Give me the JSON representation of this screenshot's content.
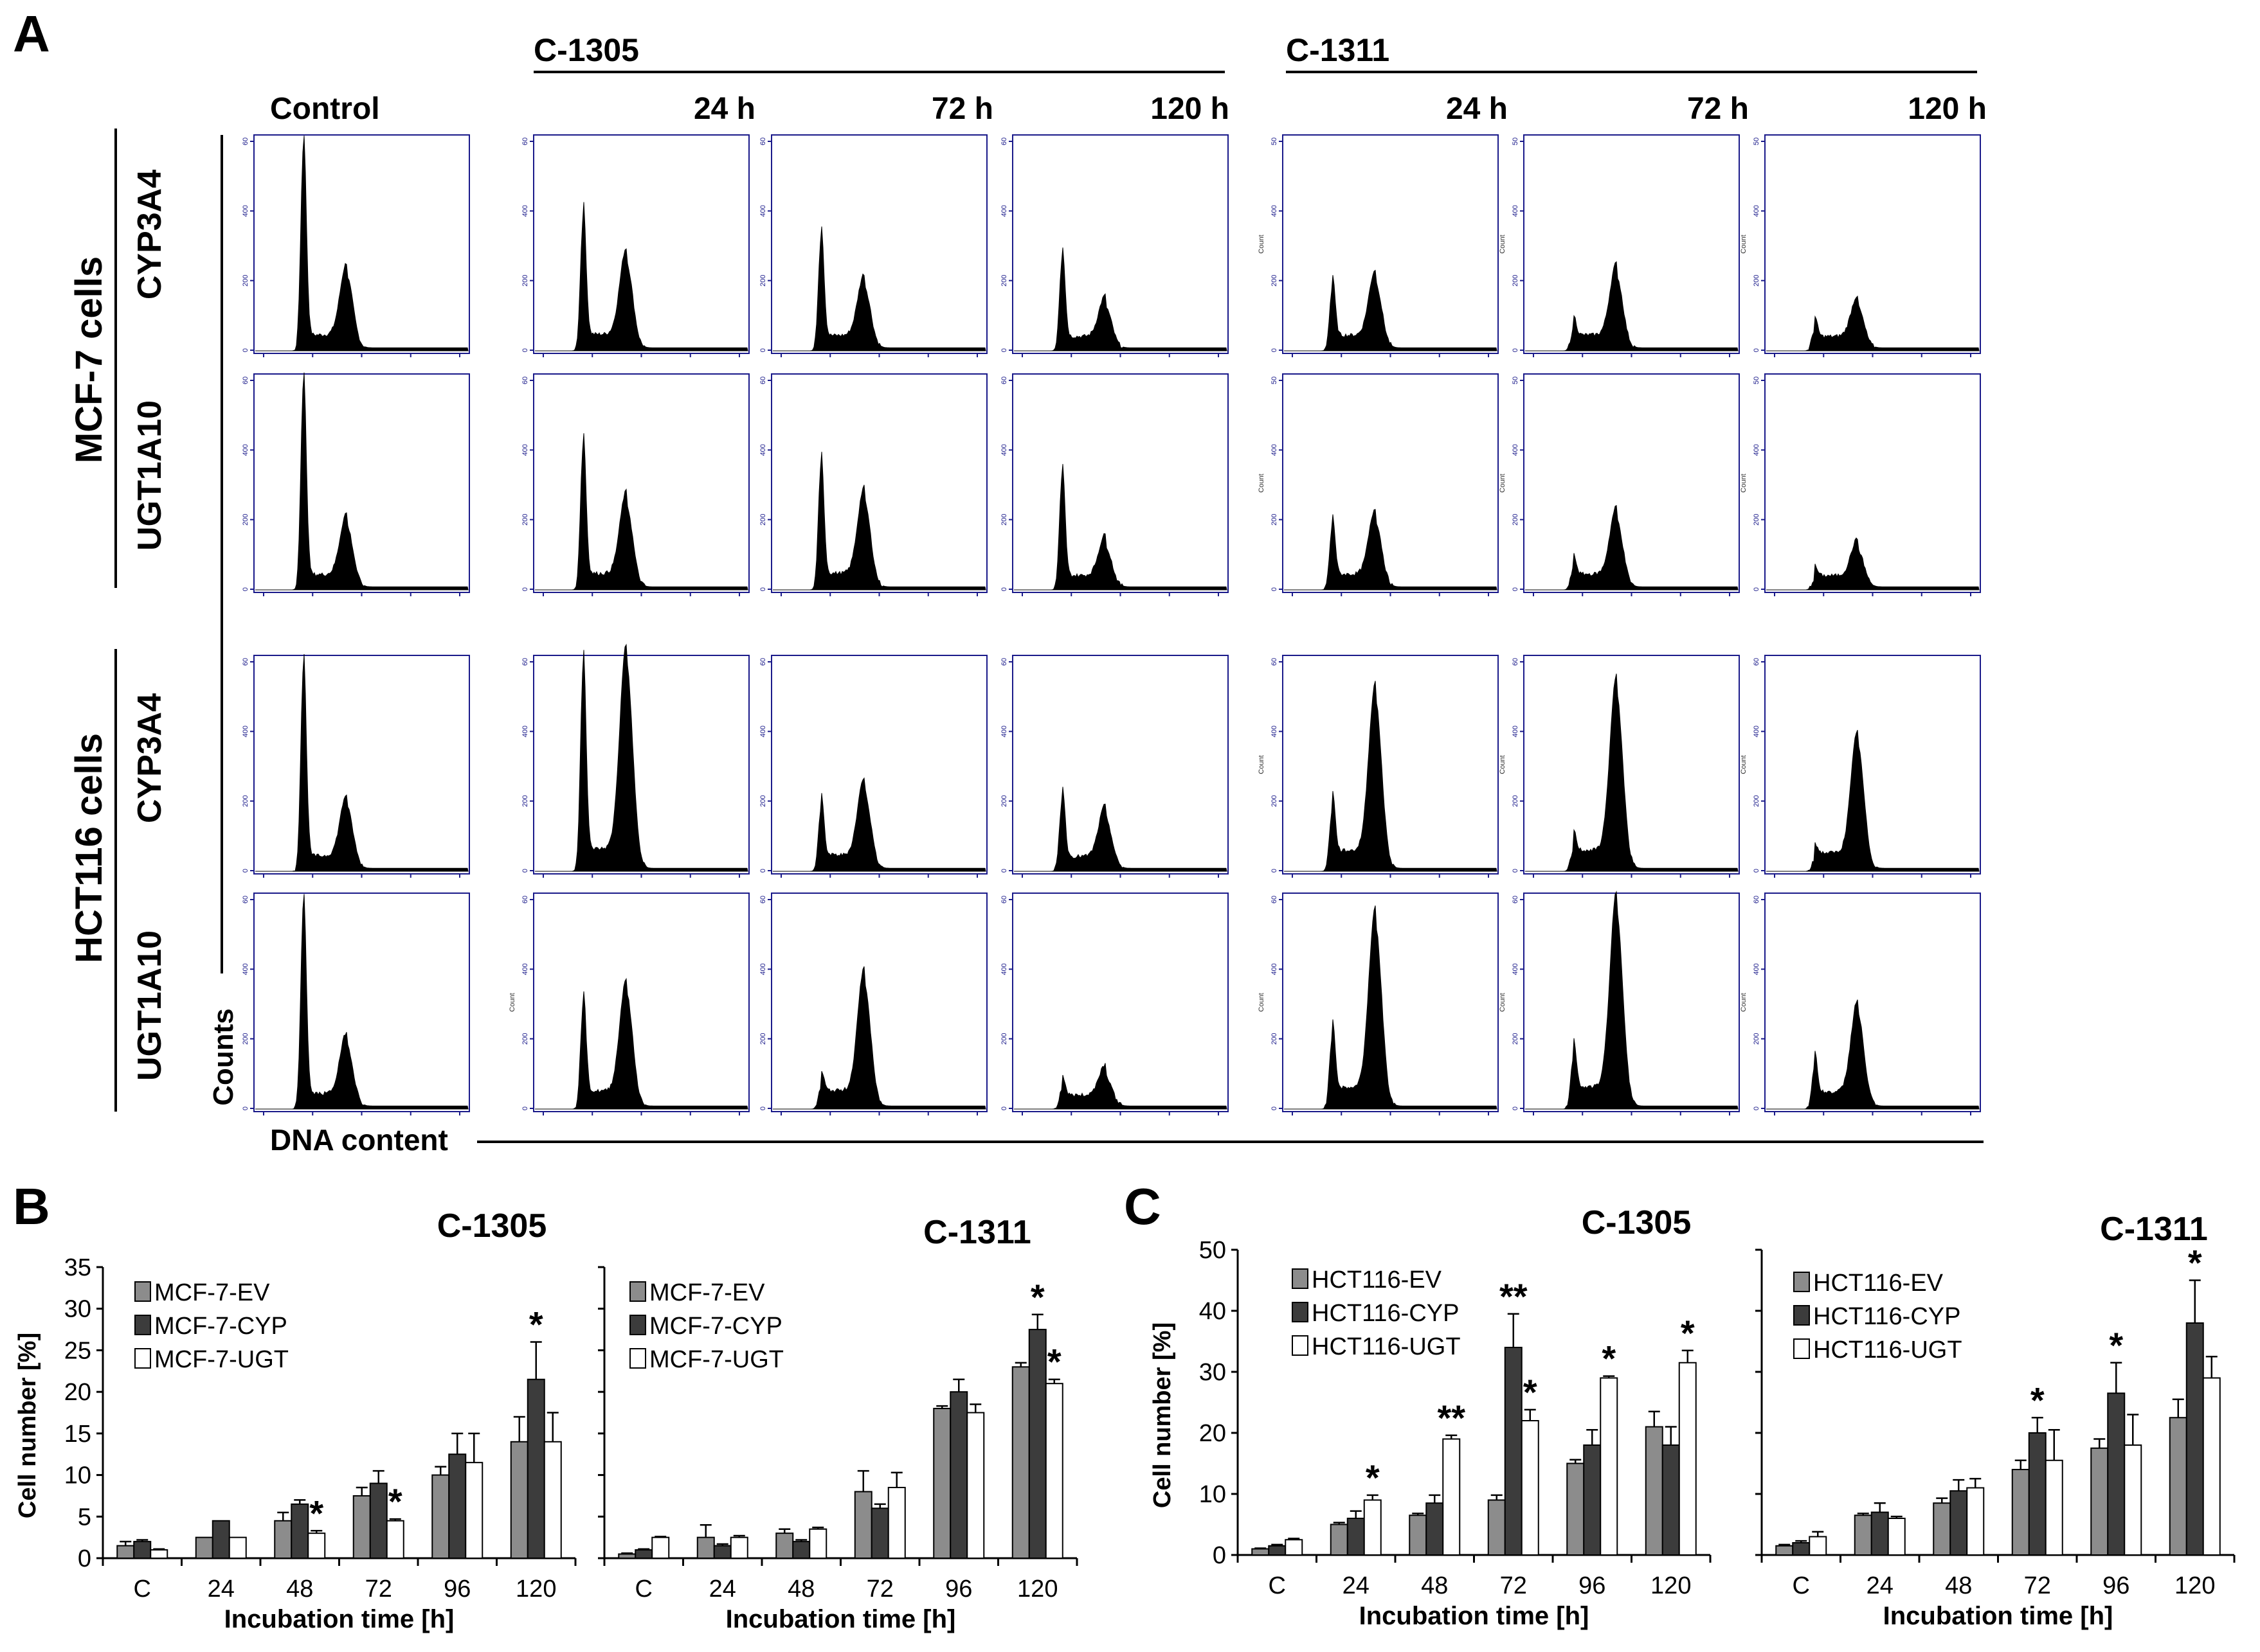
{
  "panel_labels": {
    "a": "A",
    "b": "B",
    "c": "C"
  },
  "panelA": {
    "group1": "C-1305",
    "group2": "C-1311",
    "col_headers": [
      "Control",
      "24 h",
      "72 h",
      "120 h",
      "24 h",
      "72 h",
      "120 h"
    ],
    "cell_lines": [
      "MCF-7 cells",
      "HCT116 cells"
    ],
    "row_labels": [
      "CYP3A4",
      "UGT1A10",
      "CYP3A4",
      "UGT1A10"
    ],
    "y_axis_label": "Counts",
    "x_axis_label": "DNA content",
    "mini_tick_scaleA": [
      "0",
      "200",
      "400",
      "60"
    ],
    "mini_tick_scaleB": [
      "0",
      "200",
      "400",
      "50"
    ],
    "mini_ylabel": "Count",
    "histogram_peak_heights_rel": [
      [
        [
          1.0,
          0.35
        ],
        [
          0.65,
          0.42
        ],
        [
          0.55,
          0.3
        ],
        [
          0.45,
          0.2
        ],
        [
          0.3,
          0.32
        ],
        [
          0.1,
          0.35
        ],
        [
          0.1,
          0.2
        ]
      ],
      [
        [
          1.0,
          0.3
        ],
        [
          0.7,
          0.4
        ],
        [
          0.6,
          0.42
        ],
        [
          0.55,
          0.2
        ],
        [
          0.3,
          0.32
        ],
        [
          0.1,
          0.33
        ],
        [
          0.05,
          0.18
        ]
      ],
      [
        [
          1.0,
          0.3
        ],
        [
          1.0,
          1.0
        ],
        [
          0.3,
          0.38
        ],
        [
          0.35,
          0.25
        ],
        [
          0.3,
          0.82
        ],
        [
          0.1,
          0.85
        ],
        [
          0.05,
          0.6
        ]
      ],
      [
        [
          1.0,
          0.3
        ],
        [
          0.5,
          0.55
        ],
        [
          0.1,
          0.6
        ],
        [
          0.1,
          0.15
        ],
        [
          0.35,
          0.88
        ],
        [
          0.25,
          0.95
        ],
        [
          0.2,
          0.45
        ]
      ]
    ]
  },
  "chart_data": [
    {
      "type": "bar",
      "title": "C-1305",
      "xlabel": "Incubation time [h]",
      "ylabel": "Cell number [%]",
      "ylim": [
        0,
        35
      ],
      "yticks": [
        "0",
        "5",
        "10",
        "15",
        "20",
        "25",
        "30",
        "35"
      ],
      "categories": [
        "C",
        "24",
        "48",
        "72",
        "96",
        "120"
      ],
      "series": [
        {
          "name": "MCF-7-EV",
          "values": [
            1.5,
            2.5,
            4.5,
            7.5,
            10,
            14
          ],
          "errors": [
            0.5,
            0,
            1,
            1,
            1,
            3
          ]
        },
        {
          "name": "MCF-7-CYP",
          "values": [
            2,
            4.5,
            6.5,
            9,
            12.5,
            21.5
          ],
          "errors": [
            0.2,
            0,
            0.5,
            1.5,
            2.5,
            4.5
          ]
        },
        {
          "name": "MCF-7-UGT",
          "values": [
            1,
            2.5,
            3,
            4.5,
            11.5,
            14
          ],
          "errors": [
            0.1,
            0,
            0.3,
            0.2,
            3.5,
            3.5
          ]
        }
      ],
      "stars": [
        {
          "cat": 2,
          "series": 2,
          "label": "*"
        },
        {
          "cat": 3,
          "series": 2,
          "label": "*"
        },
        {
          "cat": 5,
          "series": 1,
          "label": "*"
        }
      ]
    },
    {
      "type": "bar",
      "title": "C-1311",
      "xlabel": "Incubation time [h]",
      "ylabel": "",
      "ylim": [
        0,
        35
      ],
      "yticks": [],
      "categories": [
        "C",
        "24",
        "48",
        "72",
        "96",
        "120"
      ],
      "series": [
        {
          "name": "MCF-7-EV",
          "values": [
            0.5,
            2.5,
            3,
            8,
            18,
            23
          ],
          "errors": [
            0.1,
            1.5,
            0.5,
            2.5,
            0.3,
            0.5
          ]
        },
        {
          "name": "MCF-7-CYP",
          "values": [
            1,
            1.5,
            2,
            6,
            20,
            27.5
          ],
          "errors": [
            0.1,
            0.2,
            0.2,
            0.5,
            1.5,
            1.8
          ]
        },
        {
          "name": "MCF-7-UGT",
          "values": [
            2.5,
            2.5,
            3.5,
            8.5,
            17.5,
            21
          ],
          "errors": [
            0.1,
            0.2,
            0.2,
            1.8,
            1,
            0.5
          ]
        }
      ],
      "stars": [
        {
          "cat": 5,
          "series": 1,
          "label": "*"
        },
        {
          "cat": 5,
          "series": 2,
          "label": "*"
        }
      ]
    },
    {
      "type": "bar",
      "title": "C-1305",
      "xlabel": "Incubation time [h]",
      "ylabel": "Cell number [%]",
      "ylim": [
        0,
        50
      ],
      "yticks": [
        "0",
        "10",
        "20",
        "30",
        "40",
        "50"
      ],
      "categories": [
        "C",
        "24",
        "48",
        "72",
        "96",
        "120"
      ],
      "series": [
        {
          "name": "HCT116-EV",
          "values": [
            1,
            5,
            6.5,
            9,
            15,
            21
          ],
          "errors": [
            0.1,
            0.3,
            0.3,
            0.8,
            0.6,
            2.5
          ]
        },
        {
          "name": "HCT116-CYP",
          "values": [
            1.5,
            6,
            8.5,
            34,
            18,
            18
          ],
          "errors": [
            0.2,
            1.2,
            1.3,
            5.5,
            2.5,
            3
          ]
        },
        {
          "name": "HCT116-UGT",
          "values": [
            2.5,
            9,
            19,
            22,
            29,
            31.5
          ],
          "errors": [
            0.2,
            0.8,
            0.6,
            1.8,
            0.3,
            2
          ]
        }
      ],
      "stars": [
        {
          "cat": 1,
          "series": 2,
          "label": "*"
        },
        {
          "cat": 2,
          "series": 2,
          "label": "**"
        },
        {
          "cat": 3,
          "series": 1,
          "label": "**"
        },
        {
          "cat": 3,
          "series": 2,
          "label": "*"
        },
        {
          "cat": 4,
          "series": 2,
          "label": "*"
        },
        {
          "cat": 5,
          "series": 2,
          "label": "*"
        }
      ]
    },
    {
      "type": "bar",
      "title": "C-1311",
      "xlabel": "Incubation time [h]",
      "ylabel": "",
      "ylim": [
        0,
        50
      ],
      "yticks": [],
      "categories": [
        "C",
        "24",
        "48",
        "72",
        "96",
        "120"
      ],
      "series": [
        {
          "name": "HCT116-EV",
          "values": [
            1.5,
            6.5,
            8.5,
            14,
            17.5,
            22.5
          ],
          "errors": [
            0.2,
            0.3,
            0.8,
            1.5,
            1.5,
            3
          ]
        },
        {
          "name": "HCT116-CYP",
          "values": [
            2,
            7,
            10.5,
            20,
            26.5,
            38
          ],
          "errors": [
            0.3,
            1.5,
            1.8,
            2.5,
            5,
            7
          ]
        },
        {
          "name": "HCT116-UGT",
          "values": [
            3,
            6,
            11,
            15.5,
            18,
            29
          ],
          "errors": [
            0.8,
            0.3,
            1.5,
            5,
            5,
            3.5
          ]
        }
      ],
      "stars": [
        {
          "cat": 3,
          "series": 1,
          "label": "*"
        },
        {
          "cat": 4,
          "series": 1,
          "label": "*"
        },
        {
          "cat": 5,
          "series": 1,
          "label": "*"
        }
      ]
    }
  ],
  "colors": {
    "ev": "#8c8c8c",
    "cyp": "#3c3c3c",
    "ugt": "#ffffff",
    "axis": "#000000",
    "frame": "#1a1a8a"
  }
}
